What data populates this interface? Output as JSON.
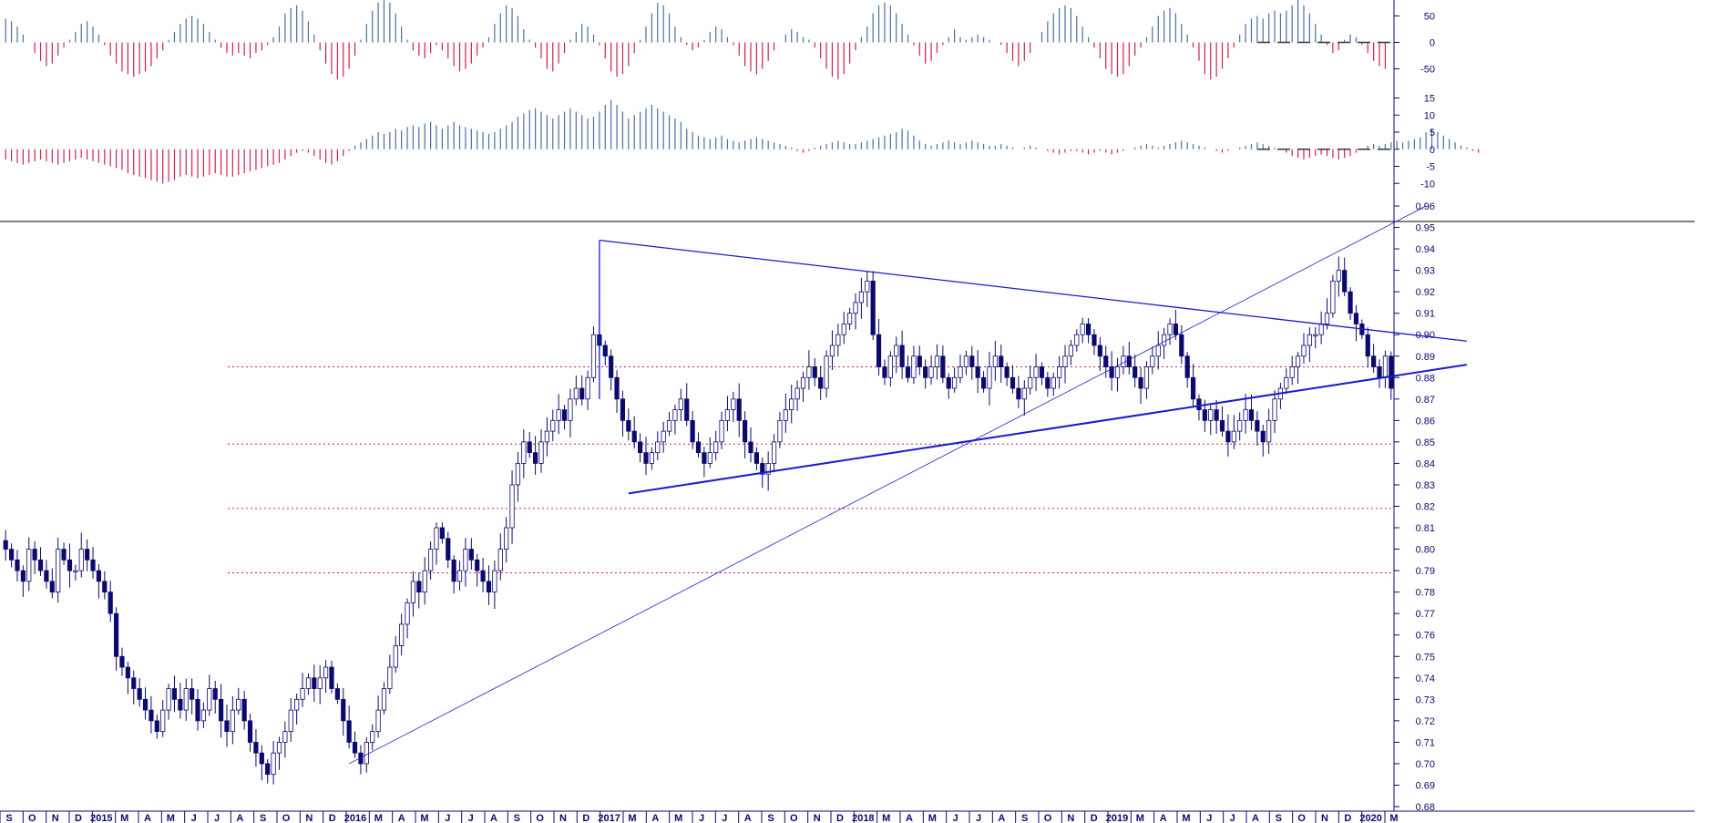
{
  "chart_data": [
    {
      "type": "bar",
      "panel": "oscillator-1",
      "y_ticks": [
        50,
        0,
        -50
      ],
      "y_tick_labels": [
        "50",
        "0",
        "-50"
      ],
      "ylim": [
        -75,
        75
      ],
      "reference_line": 0,
      "positive_color": "#4a6fa0",
      "negative_color": "#d0204a",
      "values": [
        45,
        40,
        30,
        15,
        0,
        -20,
        -35,
        -45,
        -40,
        -25,
        -10,
        5,
        20,
        35,
        40,
        30,
        15,
        -5,
        -25,
        -40,
        -55,
        -60,
        -65,
        -60,
        -55,
        -45,
        -30,
        -15,
        5,
        20,
        35,
        45,
        50,
        45,
        35,
        20,
        5,
        -10,
        -20,
        -25,
        -20,
        -25,
        -30,
        -20,
        -15,
        -5,
        10,
        30,
        55,
        65,
        70,
        60,
        40,
        15,
        -15,
        -40,
        -60,
        -70,
        -65,
        -50,
        -25,
        5,
        35,
        60,
        75,
        80,
        75,
        55,
        30,
        5,
        -15,
        -25,
        -30,
        -20,
        -5,
        -15,
        -30,
        -45,
        -55,
        -50,
        -40,
        -25,
        -10,
        10,
        35,
        55,
        70,
        65,
        50,
        25,
        5,
        -10,
        -30,
        -50,
        -55,
        -40,
        -20,
        5,
        20,
        35,
        30,
        15,
        -5,
        -30,
        -55,
        -65,
        -60,
        -45,
        -20,
        5,
        30,
        55,
        75,
        70,
        55,
        30,
        10,
        -5,
        -15,
        -10,
        5,
        20,
        30,
        25,
        10,
        -5,
        -25,
        -45,
        -55,
        -60,
        -50,
        -35,
        -15,
        0,
        15,
        25,
        20,
        10,
        5,
        -10,
        -30,
        -50,
        -65,
        -70,
        -60,
        -40,
        -15,
        10,
        30,
        55,
        70,
        75,
        70,
        55,
        35,
        15,
        -5,
        -25,
        -40,
        -35,
        -20,
        -5,
        10,
        25,
        10,
        5,
        10,
        15,
        10,
        5,
        0,
        -5,
        -20,
        -35,
        -45,
        -35,
        -20,
        0,
        20,
        40,
        55,
        65,
        70,
        65,
        50,
        30,
        10,
        -10,
        -30,
        -50,
        -60,
        -65,
        -60,
        -45,
        -25,
        -10,
        10,
        30,
        50,
        60,
        65,
        55,
        35,
        15,
        -10,
        -35,
        -60,
        -70,
        -65,
        -50,
        -30,
        -10,
        15,
        35,
        45,
        50,
        45,
        55,
        60,
        55,
        60,
        70,
        80,
        70,
        55,
        35,
        15,
        -5,
        -20,
        -15,
        5,
        15,
        10,
        -5,
        -20,
        -35,
        -45,
        -50
      ]
    },
    {
      "type": "bar",
      "panel": "oscillator-2",
      "y_ticks": [
        15,
        10,
        5,
        0,
        -5,
        -10
      ],
      "y_tick_labels": [
        "15",
        "10",
        "5",
        "0",
        "-5",
        "-10"
      ],
      "ylim": [
        -11,
        17
      ],
      "reference_line": 0,
      "positive_color": "#4a6fa0",
      "negative_color": "#d0204a",
      "values": [
        -3,
        -3.5,
        -4,
        -4.5,
        -4,
        -3.5,
        -3,
        -3.5,
        -4,
        -4.5,
        -4,
        -3.5,
        -3,
        -2.5,
        -3,
        -3.5,
        -4,
        -4.5,
        -5,
        -5.5,
        -6,
        -7,
        -7.5,
        -8,
        -8.5,
        -9,
        -9.5,
        -10,
        -9.5,
        -9,
        -8,
        -7.5,
        -8,
        -8.5,
        -8,
        -7.5,
        -7,
        -7.5,
        -8,
        -8,
        -7.5,
        -7,
        -6.5,
        -6,
        -5.5,
        -5,
        -4.5,
        -4,
        -3,
        -2,
        -1,
        -0.5,
        -1,
        -2,
        -3,
        -4,
        -4.5,
        -3.5,
        -2,
        -0.5,
        1,
        2,
        3,
        4,
        5,
        4.5,
        5,
        6,
        5.5,
        6.5,
        7,
        6.5,
        7.5,
        8,
        7,
        6,
        7,
        8,
        7,
        6.5,
        6,
        5.5,
        5,
        4.5,
        5,
        6,
        7,
        8,
        9.5,
        10.5,
        11.5,
        12,
        11,
        10,
        9,
        10,
        11,
        12,
        11,
        10,
        9,
        9.5,
        11,
        13,
        14.5,
        13,
        11,
        9,
        10,
        11,
        12,
        13,
        12,
        11,
        10,
        9,
        8,
        6,
        5,
        4,
        3.5,
        3,
        3.5,
        4,
        3,
        2.5,
        2,
        2.5,
        3,
        3.5,
        3,
        2.5,
        2,
        1.5,
        1,
        0.5,
        -0.5,
        -1,
        -0.5,
        0.5,
        1,
        1.5,
        2,
        2.5,
        2,
        1.5,
        1.5,
        2,
        2.5,
        3,
        3.5,
        4,
        4.5,
        5,
        6,
        5.5,
        4,
        2.5,
        1.5,
        1,
        1.5,
        2,
        2.5,
        2,
        1.5,
        2,
        2.5,
        2,
        1.5,
        1,
        1,
        1.5,
        1,
        0.5,
        0,
        0.5,
        1,
        0.5,
        0,
        -0.5,
        -1,
        -1.5,
        -1,
        -0.5,
        -0.5,
        -1,
        -1.5,
        -1,
        -0.5,
        -1,
        -1.5,
        -1,
        -0.5,
        0,
        0.5,
        1,
        1.5,
        1,
        0.5,
        1,
        1.5,
        2,
        2.5,
        2,
        1.5,
        1,
        0.5,
        0,
        -0.5,
        -1,
        -0.5,
        0,
        0.5,
        1,
        1.5,
        2,
        1.5,
        1,
        0.5,
        0,
        -1,
        -2,
        -2.5,
        -3,
        -2.5,
        -2,
        -1.5,
        -2,
        -2.5,
        -3,
        -2.5,
        -2,
        -1,
        0,
        1,
        1.5,
        1,
        1.5,
        2,
        2.5,
        2,
        2.5,
        3,
        3.5,
        5,
        6,
        5,
        4,
        3,
        2,
        1,
        0.5,
        -0.5,
        -1
      ]
    },
    {
      "type": "candlestick",
      "panel": "price",
      "ylim": [
        0.68,
        0.96
      ],
      "y_ticks": [
        0.96,
        0.95,
        0.94,
        0.93,
        0.92,
        0.91,
        0.9,
        0.89,
        0.88,
        0.87,
        0.86,
        0.85,
        0.84,
        0.83,
        0.82,
        0.81,
        0.8,
        0.79,
        0.78,
        0.77,
        0.76,
        0.75,
        0.74,
        0.73,
        0.72,
        0.71,
        0.7,
        0.69,
        0.68
      ],
      "y_tick_labels": [
        "0.96",
        "0.95",
        "0.94",
        "0.93",
        "0.92",
        "0.91",
        "0.90",
        "0.89",
        "0.88",
        "0.87",
        "0.86",
        "0.85",
        "0.84",
        "0.83",
        "0.82",
        "0.81",
        "0.80",
        "0.79",
        "0.78",
        "0.77",
        "0.76",
        "0.75",
        "0.74",
        "0.73",
        "0.72",
        "0.71",
        "0.70",
        "0.69",
        "0.68"
      ],
      "up_color": "#ffffff",
      "down_color": "#0a0a6e",
      "closes": [
        0.8,
        0.795,
        0.79,
        0.785,
        0.8,
        0.795,
        0.79,
        0.785,
        0.78,
        0.8,
        0.795,
        0.79,
        0.79,
        0.8,
        0.795,
        0.79,
        0.785,
        0.78,
        0.77,
        0.75,
        0.745,
        0.74,
        0.735,
        0.73,
        0.725,
        0.72,
        0.715,
        0.725,
        0.735,
        0.73,
        0.725,
        0.735,
        0.73,
        0.72,
        0.725,
        0.735,
        0.73,
        0.72,
        0.715,
        0.725,
        0.73,
        0.72,
        0.71,
        0.705,
        0.7,
        0.695,
        0.705,
        0.71,
        0.715,
        0.725,
        0.73,
        0.735,
        0.74,
        0.735,
        0.74,
        0.745,
        0.735,
        0.73,
        0.72,
        0.71,
        0.705,
        0.7,
        0.71,
        0.715,
        0.725,
        0.735,
        0.745,
        0.755,
        0.765,
        0.775,
        0.785,
        0.78,
        0.79,
        0.8,
        0.81,
        0.805,
        0.795,
        0.785,
        0.79,
        0.8,
        0.795,
        0.79,
        0.785,
        0.78,
        0.79,
        0.8,
        0.81,
        0.83,
        0.84,
        0.85,
        0.845,
        0.84,
        0.85,
        0.855,
        0.86,
        0.865,
        0.86,
        0.87,
        0.875,
        0.87,
        0.88,
        0.9,
        0.895,
        0.89,
        0.88,
        0.87,
        0.86,
        0.855,
        0.85,
        0.845,
        0.84,
        0.845,
        0.85,
        0.855,
        0.86,
        0.865,
        0.87,
        0.86,
        0.85,
        0.845,
        0.84,
        0.845,
        0.85,
        0.86,
        0.865,
        0.87,
        0.86,
        0.85,
        0.845,
        0.84,
        0.835,
        0.84,
        0.85,
        0.86,
        0.865,
        0.87,
        0.875,
        0.88,
        0.885,
        0.88,
        0.875,
        0.89,
        0.895,
        0.9,
        0.905,
        0.91,
        0.915,
        0.92,
        0.925,
        0.9,
        0.885,
        0.88,
        0.89,
        0.895,
        0.885,
        0.88,
        0.89,
        0.885,
        0.88,
        0.885,
        0.89,
        0.88,
        0.875,
        0.88,
        0.885,
        0.89,
        0.885,
        0.88,
        0.875,
        0.885,
        0.89,
        0.885,
        0.88,
        0.875,
        0.87,
        0.875,
        0.88,
        0.885,
        0.88,
        0.875,
        0.88,
        0.885,
        0.89,
        0.895,
        0.9,
        0.905,
        0.9,
        0.895,
        0.89,
        0.885,
        0.88,
        0.885,
        0.89,
        0.885,
        0.88,
        0.875,
        0.885,
        0.89,
        0.895,
        0.9,
        0.905,
        0.9,
        0.89,
        0.88,
        0.87,
        0.865,
        0.86,
        0.865,
        0.86,
        0.855,
        0.85,
        0.855,
        0.86,
        0.865,
        0.86,
        0.855,
        0.85,
        0.86,
        0.87,
        0.875,
        0.88,
        0.885,
        0.89,
        0.895,
        0.9,
        0.9,
        0.905,
        0.91,
        0.925,
        0.93,
        0.92,
        0.91,
        0.905,
        0.9,
        0.89,
        0.885,
        0.88,
        0.89,
        0.875
      ]
    }
  ],
  "x_axis": {
    "labels": [
      "S",
      "O",
      "N",
      "D",
      "2015",
      "M",
      "A",
      "M",
      "J",
      "J",
      "A",
      "S",
      "O",
      "N",
      "D",
      "2016",
      "M",
      "A",
      "M",
      "J",
      "J",
      "A",
      "S",
      "O",
      "N",
      "D",
      "2017",
      "M",
      "A",
      "M",
      "J",
      "J",
      "A",
      "S",
      "O",
      "N",
      "D",
      "2018",
      "M",
      "A",
      "M",
      "J",
      "J",
      "A",
      "S",
      "O",
      "N",
      "D",
      "2019",
      "M",
      "A",
      "M",
      "J",
      "J",
      "A",
      "S",
      "O",
      "N",
      "D",
      "2020",
      "M"
    ]
  },
  "horizontal_levels": [
    0.885,
    0.849,
    0.819,
    0.789
  ],
  "trendlines": [
    {
      "name": "upper-falling",
      "from": {
        "bar": 102,
        "value": 0.944
      },
      "to": {
        "bar": 251,
        "value": 0.897
      }
    },
    {
      "name": "lower-rising",
      "from": {
        "bar": 107,
        "value": 0.826
      },
      "to": {
        "bar": 251,
        "value": 0.886
      }
    },
    {
      "name": "long-rising",
      "from": {
        "bar": 59,
        "value": 0.7
      },
      "to": {
        "bar": 244,
        "value": 0.96
      }
    },
    {
      "name": "spike-vertical",
      "from": {
        "bar": 102,
        "value": 0.87
      },
      "to": {
        "bar": 102,
        "value": 0.944
      }
    }
  ],
  "colors": {
    "axis": "#0a0a6e",
    "trendline": "#1a1ad0",
    "level_line": "#d0204a",
    "divider": "#000000"
  }
}
